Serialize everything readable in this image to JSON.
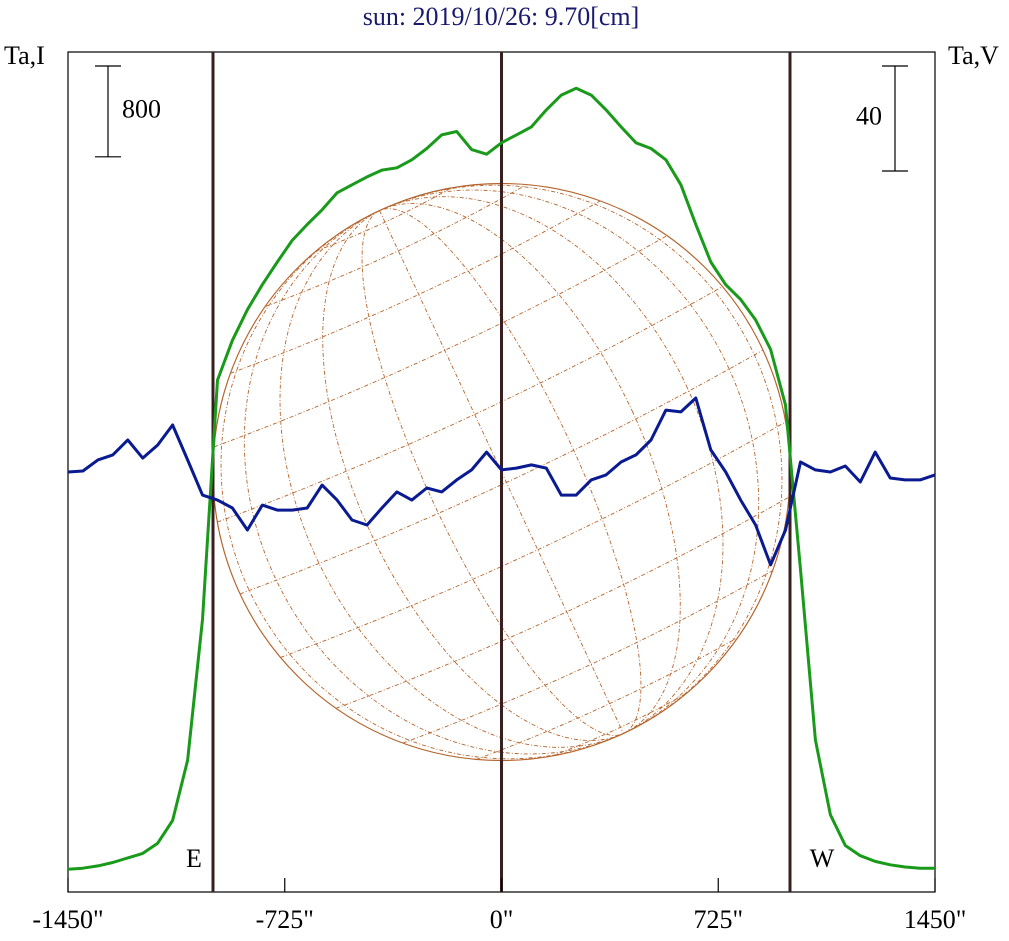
{
  "chart_data": {
    "type": "line",
    "title": "sun: 2019/10/26: 9.70[cm]",
    "x": [
      -1450,
      -1400,
      -1350,
      -1300,
      -1250,
      -1200,
      -1150,
      -1100,
      -1050,
      -1000,
      -950,
      -900,
      -850,
      -800,
      -750,
      -700,
      -650,
      -600,
      -550,
      -500,
      -450,
      -400,
      -350,
      -300,
      -250,
      -200,
      -150,
      -100,
      -50,
      0,
      50,
      100,
      150,
      200,
      250,
      300,
      350,
      400,
      450,
      500,
      550,
      600,
      650,
      700,
      750,
      800,
      850,
      900,
      950,
      1000,
      1050,
      1100,
      1150,
      1200,
      1250,
      1300,
      1350,
      1400,
      1450
    ],
    "xlim": [
      -1450,
      1450
    ],
    "xticks": [
      {
        "value": -1450,
        "label": "-1450\""
      },
      {
        "value": -725,
        "label": "-725\""
      },
      {
        "value": 0,
        "label": "0\""
      },
      {
        "value": 725,
        "label": "725\""
      },
      {
        "value": 1450,
        "label": "1450\""
      }
    ],
    "ylim": [
      -200,
      7200
    ],
    "y2lim": [
      -160,
      160
    ],
    "series": [
      {
        "name": "Ta,I",
        "color": "#1a9a1a",
        "axis": "y",
        "values": [
          0,
          10,
          30,
          60,
          100,
          140,
          230,
          430,
          960,
          2200,
          4310,
          4660,
          4930,
          5150,
          5350,
          5540,
          5680,
          5810,
          5960,
          6030,
          6100,
          6160,
          6180,
          6250,
          6350,
          6470,
          6500,
          6340,
          6300,
          6400,
          6470,
          6540,
          6690,
          6820,
          6880,
          6820,
          6690,
          6540,
          6400,
          6350,
          6250,
          6030,
          5680,
          5350,
          5150,
          5020,
          4840,
          4580,
          4090,
          2640,
          1140,
          480,
          210,
          120,
          70,
          40,
          20,
          10,
          10
        ]
      },
      {
        "name": "Ta,V",
        "color": "#0a1a90",
        "axis": "y2",
        "values": [
          0,
          0.4,
          4.6,
          6.5,
          12.2,
          5.3,
          10.3,
          17.9,
          4.6,
          -8.8,
          -10.7,
          -13.7,
          -22.1,
          -12.6,
          -14.5,
          -14.5,
          -13.7,
          -5.0,
          -10.7,
          -18.3,
          -20.2,
          -13.7,
          -7.6,
          -10.7,
          -6.1,
          -7.6,
          -3.0,
          0.8,
          7.6,
          0.8,
          1.5,
          2.7,
          1.5,
          -8.8,
          -8.8,
          -3.0,
          -1.1,
          3.8,
          6.5,
          12.2,
          23.6,
          22.9,
          28.2,
          8.4,
          0,
          -10.7,
          -20.2,
          -35.4,
          -22.1,
          3.8,
          0.8,
          0,
          2.3,
          -3.8,
          7.6,
          -2.3,
          -3.0,
          -3.0,
          -1.1
        ]
      }
    ],
    "scale_bars": [
      {
        "value": 800,
        "axis": "y"
      },
      {
        "value": 40,
        "axis": "y2"
      }
    ],
    "vlines": [
      -965,
      0,
      965
    ],
    "vline_color": "#3a1f1f",
    "disk_color": "#b5652d",
    "annotations": [
      "E",
      "W"
    ]
  }
}
